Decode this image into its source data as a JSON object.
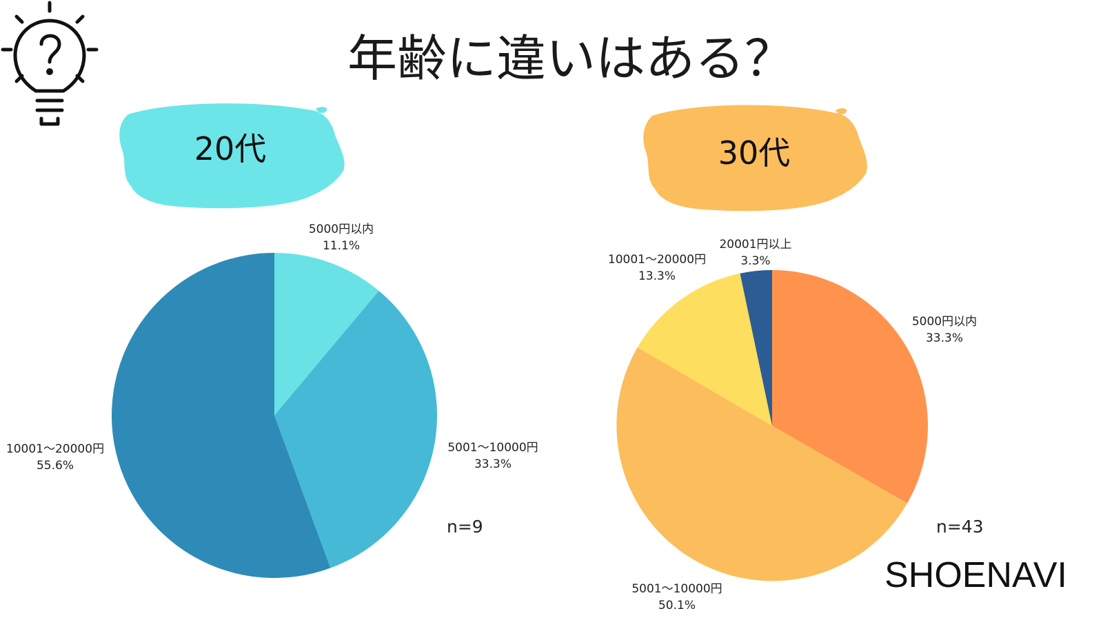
{
  "title": "年齢に違いはある？",
  "brand": "SHOENAVI",
  "icons": {
    "bulb": "lightbulb-question-icon"
  },
  "colors": {
    "badge_20s": "#6ce5e8",
    "badge_30s": "#fcbd5c"
  },
  "chart_data": [
    {
      "type": "pie",
      "title": "20代",
      "n_label": "n=9",
      "slices": [
        {
          "name": "5000円以内",
          "value": 11.1,
          "label": "11.1%",
          "color": "#69e2e6"
        },
        {
          "name": "5001～10000円",
          "value": 33.3,
          "label": "33.3%",
          "color": "#45b9d6"
        },
        {
          "name": "10001～20000円",
          "value": 55.6,
          "label": "55.6%",
          "color": "#2e8bb8"
        }
      ]
    },
    {
      "type": "pie",
      "title": "30代",
      "n_label": "n=43",
      "slices": [
        {
          "name": "5000円以内",
          "value": 33.3,
          "label": "33.3%",
          "color": "#ff934e"
        },
        {
          "name": "5001～10000円",
          "value": 50.1,
          "label": "50.1%",
          "color": "#fcbd5c"
        },
        {
          "name": "10001～20000円",
          "value": 13.3,
          "label": "13.3%",
          "color": "#fede5e"
        },
        {
          "name": "20001円以上",
          "value": 3.3,
          "label": "3.3%",
          "color": "#2c5c94"
        }
      ]
    }
  ]
}
